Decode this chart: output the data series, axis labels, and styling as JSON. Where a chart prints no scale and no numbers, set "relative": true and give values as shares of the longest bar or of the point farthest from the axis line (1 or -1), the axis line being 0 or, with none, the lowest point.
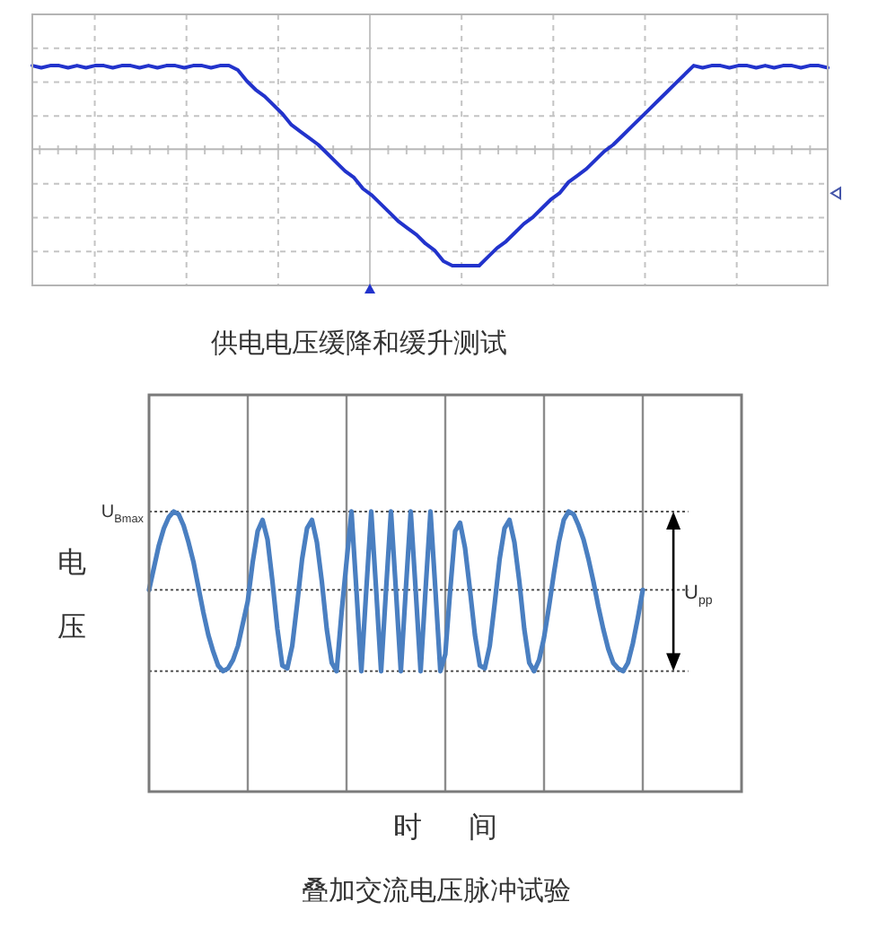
{
  "chart_data": [
    {
      "type": "line",
      "title": "供电电压缓降和缓升测试",
      "relative": true,
      "grid": true,
      "categories": [
        null,
        null,
        null,
        null,
        null,
        null,
        null,
        null,
        null,
        null,
        null,
        null,
        null,
        null,
        null,
        null,
        null,
        null,
        null,
        null,
        null,
        null,
        null,
        null,
        null,
        null,
        null,
        null,
        null,
        null,
        null,
        null,
        null,
        null,
        null,
        null,
        null,
        null,
        null,
        null,
        null,
        null,
        null,
        null,
        null,
        null,
        null,
        null,
        null,
        null,
        null,
        null,
        null,
        null,
        null,
        null,
        null,
        null,
        null,
        null,
        null,
        null,
        null,
        null,
        null,
        null,
        null,
        null,
        null,
        null,
        null,
        null,
        null,
        null,
        null,
        null,
        null,
        null,
        null,
        null,
        null,
        null,
        null,
        null,
        null,
        null,
        null,
        null,
        null,
        null
      ],
      "series": [
        {
          "color": "#2233cc",
          "values": [
            1.0,
            0.99,
            1.0,
            1.0,
            0.99,
            1.0,
            0.99,
            1.0,
            1.0,
            0.99,
            1.0,
            1.0,
            0.99,
            1.0,
            0.99,
            1.0,
            1.0,
            0.99,
            1.0,
            1.0,
            0.99,
            1.0,
            1.0,
            0.98,
            0.93,
            0.89,
            0.86,
            0.82,
            0.78,
            0.73,
            0.7,
            0.67,
            0.64,
            0.6,
            0.56,
            0.52,
            0.49,
            0.44,
            0.41,
            0.37,
            0.33,
            0.29,
            0.26,
            0.23,
            0.19,
            0.16,
            0.11,
            0.09,
            0.09,
            0.09,
            0.09,
            0.13,
            0.17,
            0.2,
            0.24,
            0.28,
            0.31,
            0.35,
            0.39,
            0.42,
            0.47,
            0.5,
            0.53,
            0.57,
            0.61,
            0.64,
            0.68,
            0.72,
            0.76,
            0.8,
            0.84,
            0.88,
            0.92,
            0.96,
            1.0,
            0.99,
            1.0,
            1.0,
            0.99,
            1.0,
            1.0,
            0.99,
            1.0,
            0.99,
            1.0,
            1.0,
            0.99,
            1.0,
            1.0,
            0.99
          ]
        }
      ],
      "ref_lines": [
        {
          "axis": "y",
          "value": 0.62,
          "line_style": "solid",
          "color": "#b8b8b8"
        }
      ]
    },
    {
      "type": "line",
      "title": "叠加交流电压脉冲试验",
      "xlabel": "时间",
      "ylabel": "电压",
      "relative": true,
      "grid": "x",
      "categories": [
        null,
        null,
        null,
        null,
        null,
        null,
        null,
        null,
        null,
        null,
        null,
        null,
        null,
        null,
        null,
        null,
        null,
        null,
        null,
        null,
        null,
        null,
        null,
        null,
        null,
        null,
        null,
        null,
        null,
        null,
        null,
        null,
        null,
        null,
        null,
        null,
        null,
        null,
        null,
        null,
        null,
        null,
        null,
        null,
        null,
        null,
        null,
        null,
        null,
        null,
        null,
        null,
        null,
        null,
        null,
        null,
        null,
        null,
        null,
        null,
        null,
        null,
        null,
        null,
        null,
        null,
        null,
        null,
        null,
        null,
        null,
        null,
        null,
        null,
        null,
        null,
        null,
        null,
        null,
        null,
        null,
        null,
        null,
        null,
        null,
        null,
        null,
        null,
        null,
        null,
        null,
        null,
        null,
        null,
        null,
        null,
        null,
        null,
        null,
        null,
        null,
        null,
        null,
        null,
        null,
        null,
        null,
        null,
        null,
        null,
        null,
        null,
        null,
        null,
        null,
        null,
        null,
        null,
        null,
        null,
        null
      ],
      "series": [
        {
          "color": "#4a7fc1",
          "values": [
            0.72,
            0.8,
            0.88,
            0.94,
            0.98,
            1.0,
            0.99,
            0.95,
            0.89,
            0.82,
            0.73,
            0.64,
            0.56,
            0.5,
            0.45,
            0.43,
            0.44,
            0.47,
            0.52,
            0.6,
            0.68,
            0.82,
            0.93,
            0.97,
            0.9,
            0.75,
            0.58,
            0.45,
            0.44,
            0.52,
            0.67,
            0.83,
            0.94,
            0.97,
            0.89,
            0.75,
            0.58,
            0.46,
            0.43,
            0.64,
            0.82,
            1.0,
            0.72,
            0.43,
            0.72,
            1.0,
            0.72,
            0.43,
            0.72,
            1.0,
            0.72,
            0.43,
            0.72,
            1.0,
            0.72,
            0.43,
            0.72,
            1.0,
            0.72,
            0.43,
            0.49,
            0.72,
            0.93,
            0.96,
            0.87,
            0.72,
            0.56,
            0.45,
            0.44,
            0.52,
            0.67,
            0.83,
            0.94,
            0.97,
            0.89,
            0.75,
            0.58,
            0.46,
            0.43,
            0.47,
            0.55,
            0.66,
            0.78,
            0.89,
            0.97,
            1.0,
            0.99,
            0.95,
            0.9,
            0.83,
            0.75,
            0.66,
            0.58,
            0.51,
            0.46,
            0.44,
            0.43,
            0.46,
            0.53,
            0.62,
            0.72,
            null,
            null,
            null,
            null,
            null,
            null,
            null,
            null,
            null,
            null,
            null,
            null,
            null,
            null,
            null,
            null,
            null,
            null,
            null,
            null
          ]
        }
      ],
      "ref_lines": [
        {
          "axis": "y",
          "value": 1.0,
          "label": "U$_{Bmax}$",
          "line_style": "dotted",
          "color": "#555555"
        },
        {
          "axis": "y",
          "value": 0.72,
          "line_style": "dotted",
          "color": "#555555"
        },
        {
          "axis": "y",
          "value": 0.43,
          "line_style": "dotted",
          "color": "#555555"
        }
      ],
      "annotations": [
        "U$_{pp}$"
      ]
    }
  ]
}
